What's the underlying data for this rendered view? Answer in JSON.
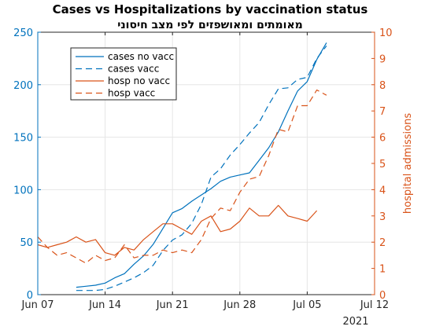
{
  "chart_data": {
    "type": "line",
    "title": "Cases vs Hospitalizations by vaccination status",
    "subtitle": "מאומתים ומאושפזים לפי מצב חיסוני",
    "xlabel": "",
    "ylabel_left": "",
    "ylabel_right": "hospital admissions",
    "year_label": "2021",
    "x_ticks": [
      "Jun 07",
      "Jun 14",
      "Jun 21",
      "Jun 28",
      "Jul 05",
      "Jul 12"
    ],
    "ylim_left": [
      0,
      250
    ],
    "yticks_left": [
      0,
      50,
      100,
      150,
      200,
      250
    ],
    "ylim_right": [
      0,
      10
    ],
    "yticks_right": [
      0,
      1,
      2,
      3,
      4,
      5,
      6,
      7,
      8,
      9,
      10
    ],
    "grid": true,
    "legend_position": "top-left",
    "colors": {
      "blue": "#0072BD",
      "orange": "#D95319"
    },
    "series": [
      {
        "name": "cases no vacc",
        "axis": "left",
        "style": "solid",
        "color": "#0072BD",
        "x": [
          "2021-06-11",
          "2021-06-12",
          "2021-06-13",
          "2021-06-14",
          "2021-06-15",
          "2021-06-16",
          "2021-06-17",
          "2021-06-18",
          "2021-06-19",
          "2021-06-20",
          "2021-06-21",
          "2021-06-22",
          "2021-06-23",
          "2021-06-24",
          "2021-06-25",
          "2021-06-26",
          "2021-06-27",
          "2021-06-28",
          "2021-06-29",
          "2021-06-30",
          "2021-07-01",
          "2021-07-02",
          "2021-07-03",
          "2021-07-04",
          "2021-07-05",
          "2021-07-06",
          "2021-07-07",
          "2021-07-08"
        ],
        "y": [
          7,
          8,
          9,
          11,
          16,
          20,
          29,
          37,
          48,
          63,
          78,
          82,
          89,
          95,
          101,
          108,
          112,
          114,
          116,
          128,
          140,
          155,
          175,
          194,
          203,
          224,
          240,
          null
        ]
      },
      {
        "name": "cases vacc",
        "axis": "left",
        "style": "dashed",
        "color": "#0072BD",
        "x": [
          "2021-06-11",
          "2021-06-12",
          "2021-06-13",
          "2021-06-14",
          "2021-06-15",
          "2021-06-16",
          "2021-06-17",
          "2021-06-18",
          "2021-06-19",
          "2021-06-20",
          "2021-06-21",
          "2021-06-22",
          "2021-06-23",
          "2021-06-24",
          "2021-06-25",
          "2021-06-26",
          "2021-06-27",
          "2021-06-28",
          "2021-06-29",
          "2021-06-30",
          "2021-07-01",
          "2021-07-02",
          "2021-07-03",
          "2021-07-04",
          "2021-07-05",
          "2021-07-06",
          "2021-07-07",
          "2021-07-08"
        ],
        "y": [
          4,
          4,
          4,
          5,
          8,
          12,
          16,
          21,
          28,
          42,
          52,
          57,
          68,
          86,
          112,
          120,
          133,
          143,
          154,
          164,
          181,
          196,
          197,
          205,
          207,
          225,
          237,
          null
        ]
      },
      {
        "name": "hosp no vacc",
        "axis": "right",
        "style": "solid",
        "color": "#D95319",
        "x": [
          "2021-06-07",
          "2021-06-08",
          "2021-06-09",
          "2021-06-10",
          "2021-06-11",
          "2021-06-12",
          "2021-06-13",
          "2021-06-14",
          "2021-06-15",
          "2021-06-16",
          "2021-06-17",
          "2021-06-18",
          "2021-06-19",
          "2021-06-20",
          "2021-06-21",
          "2021-06-22",
          "2021-06-23",
          "2021-06-24",
          "2021-06-25",
          "2021-06-26",
          "2021-06-27",
          "2021-06-28",
          "2021-06-29",
          "2021-06-30",
          "2021-07-01",
          "2021-07-02",
          "2021-07-03",
          "2021-07-04",
          "2021-07-05",
          "2021-07-06",
          "2021-07-07",
          "2021-07-08"
        ],
        "y": [
          1.9,
          1.8,
          1.9,
          2.0,
          2.2,
          2.0,
          2.1,
          1.6,
          1.5,
          1.8,
          1.7,
          2.1,
          2.4,
          2.7,
          2.7,
          2.5,
          2.3,
          2.8,
          3.0,
          2.4,
          2.5,
          2.8,
          3.3,
          3.0,
          3.0,
          3.4,
          3.0,
          2.9,
          2.8,
          3.2,
          null,
          null
        ]
      },
      {
        "name": "hosp vacc",
        "axis": "right",
        "style": "dashed",
        "color": "#D95319",
        "x": [
          "2021-06-07",
          "2021-06-08",
          "2021-06-09",
          "2021-06-10",
          "2021-06-11",
          "2021-06-12",
          "2021-06-13",
          "2021-06-14",
          "2021-06-15",
          "2021-06-16",
          "2021-06-17",
          "2021-06-18",
          "2021-06-19",
          "2021-06-20",
          "2021-06-21",
          "2021-06-22",
          "2021-06-23",
          "2021-06-24",
          "2021-06-25",
          "2021-06-26",
          "2021-06-27",
          "2021-06-28",
          "2021-06-29",
          "2021-06-30",
          "2021-07-01",
          "2021-07-02",
          "2021-07-03",
          "2021-07-04",
          "2021-07-05",
          "2021-07-06",
          "2021-07-07",
          "2021-07-08"
        ],
        "y": [
          2.2,
          1.8,
          1.5,
          1.6,
          1.4,
          1.2,
          1.5,
          1.3,
          1.4,
          1.9,
          1.4,
          1.5,
          1.5,
          1.7,
          1.6,
          1.7,
          1.6,
          2.1,
          2.9,
          3.3,
          3.2,
          3.9,
          4.4,
          4.5,
          5.3,
          6.3,
          6.2,
          7.2,
          7.2,
          7.8,
          7.6,
          null
        ]
      }
    ]
  }
}
